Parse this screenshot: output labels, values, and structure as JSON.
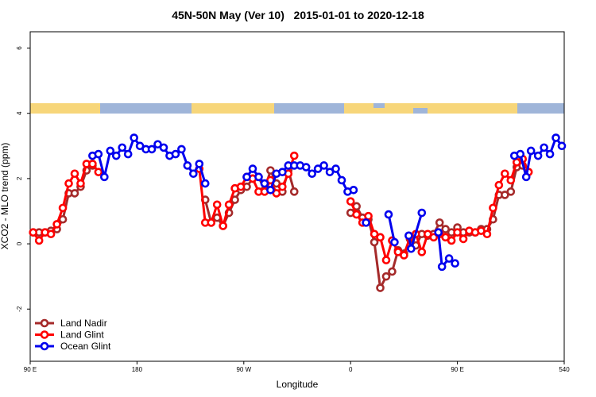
{
  "chart_data": {
    "type": "line",
    "title": "45N-50N May (Ver 10)   2015-01-01 to 2020-12-18",
    "x_label": "Longitude",
    "y_label": "XCO2 - MLO trend (ppm)",
    "xlim": [
      90,
      540
    ],
    "ylim": [
      -3.6,
      6.5
    ],
    "xticks": [
      {
        "value": 90,
        "label": "90 E"
      },
      180,
      {
        "value": 270,
        "label": "90 W"
      },
      {
        "value": 360,
        "label": "0"
      },
      {
        "value": 450,
        "label": "90 E"
      },
      540
    ],
    "yticks": [
      -2,
      0,
      2,
      4,
      6
    ],
    "legend": "bottom-left",
    "series": [
      {
        "name": "Land Nadir",
        "color": "#a52a2a",
        "x": [
          92.5,
          97.5,
          102.5,
          107.5,
          112.5,
          117.5,
          122.5,
          127.5,
          132.5,
          137.5,
          142.5,
          null,
          237.5,
          242.5,
          247.5,
          252.5,
          257.5,
          262.5,
          267.5,
          272.5,
          277.5,
          282.5,
          287.5,
          292.5,
          297.5,
          302.5,
          307.5,
          312.5,
          null,
          360,
          365,
          370,
          375,
          380,
          385,
          390,
          395,
          400,
          405,
          410,
          415,
          420,
          425,
          430,
          435,
          440,
          445,
          450,
          455,
          460,
          465,
          470,
          475,
          480,
          485,
          490,
          495,
          500,
          505
        ],
        "values": [
          0.35,
          0.35,
          0.35,
          0.4,
          0.45,
          0.75,
          1.55,
          1.55,
          1.75,
          2.25,
          2.4,
          null,
          1.35,
          0.65,
          0.8,
          0.55,
          0.95,
          1.35,
          1.65,
          1.75,
          2.0,
          2.05,
          1.65,
          2.25,
          1.85,
          1.6,
          2.25,
          1.6,
          null,
          0.95,
          1.15,
          0.8,
          0.75,
          0.05,
          -1.35,
          -1.0,
          -0.85,
          -0.2,
          -0.3,
          0.15,
          -0.05,
          0.3,
          0.25,
          0.3,
          0.65,
          0.45,
          0.35,
          0.5,
          0.35,
          0.35,
          0.35,
          0.45,
          0.45,
          0.75,
          1.5,
          1.5,
          1.6,
          2.35,
          2.4
        ]
      },
      {
        "name": "Land Glint",
        "color": "#ff0000",
        "x": [
          92.5,
          97.5,
          102.5,
          107.5,
          112.5,
          117.5,
          122.5,
          127.5,
          132.5,
          137.5,
          142.5,
          147.5,
          null,
          232.5,
          237.5,
          242.5,
          247.5,
          252.5,
          257.5,
          262.5,
          267.5,
          272.5,
          277.5,
          282.5,
          287.5,
          292.5,
          297.5,
          302.5,
          307.5,
          312.5,
          null,
          360,
          365,
          370,
          375,
          380,
          385,
          390,
          395,
          400,
          405,
          410,
          415,
          420,
          425,
          430,
          435,
          440,
          445,
          450,
          455,
          460,
          465,
          470,
          475,
          480,
          485,
          490,
          495,
          500,
          505,
          510
        ],
        "values": [
          0.35,
          0.1,
          0.35,
          0.3,
          0.6,
          1.1,
          1.85,
          2.15,
          1.85,
          2.45,
          2.45,
          2.2,
          null,
          2.3,
          0.65,
          0.65,
          1.2,
          0.55,
          1.2,
          1.7,
          1.75,
          2.05,
          2.0,
          1.6,
          1.6,
          1.95,
          1.55,
          1.75,
          2.15,
          2.7,
          null,
          1.3,
          0.9,
          0.65,
          0.85,
          0.3,
          0.2,
          -0.5,
          0.1,
          -0.25,
          -0.35,
          0.2,
          0.3,
          -0.25,
          0.3,
          0.2,
          0.3,
          0.2,
          0.1,
          0.35,
          0.15,
          0.4,
          0.35,
          0.4,
          0.3,
          1.1,
          1.8,
          2.15,
          1.95,
          2.5,
          2.6,
          2.2
        ]
      },
      {
        "name": "Ocean Glint",
        "color": "#0000ee",
        "x": [
          142.5,
          147.5,
          152.5,
          157.5,
          162.5,
          167.5,
          172.5,
          177.5,
          182.5,
          187.5,
          192.5,
          197.5,
          202.5,
          207.5,
          212.5,
          217.5,
          222.5,
          227.5,
          232.5,
          237.5,
          null,
          272.5,
          277.5,
          282.5,
          287.5,
          292.5,
          297.5,
          302.5,
          307.5,
          312.5,
          317.5,
          322.5,
          327.5,
          332.5,
          337.5,
          342.5,
          347.5,
          352.5,
          357.5,
          362.5,
          null,
          373,
          null,
          392,
          397,
          null,
          409,
          411,
          420,
          null,
          434,
          437,
          443,
          448,
          null,
          498,
          503,
          508,
          512,
          518,
          523,
          528,
          533,
          538
        ],
        "values": [
          2.7,
          2.75,
          2.05,
          2.85,
          2.7,
          2.95,
          2.75,
          3.25,
          3.0,
          2.9,
          2.9,
          3.05,
          2.95,
          2.7,
          2.75,
          2.9,
          2.4,
          2.15,
          2.45,
          1.85,
          null,
          2.05,
          2.3,
          2.05,
          1.85,
          1.65,
          2.15,
          2.2,
          2.4,
          2.4,
          2.4,
          2.35,
          2.15,
          2.3,
          2.4,
          2.2,
          2.3,
          1.95,
          1.6,
          1.65,
          null,
          0.65,
          null,
          0.9,
          0.05,
          null,
          0.25,
          -0.15,
          0.95,
          null,
          0.35,
          -0.7,
          -0.45,
          -0.6,
          null,
          2.7,
          2.75,
          2.05,
          2.85,
          2.7,
          2.95,
          2.75,
          3.25,
          3.0
        ]
      }
    ]
  }
}
